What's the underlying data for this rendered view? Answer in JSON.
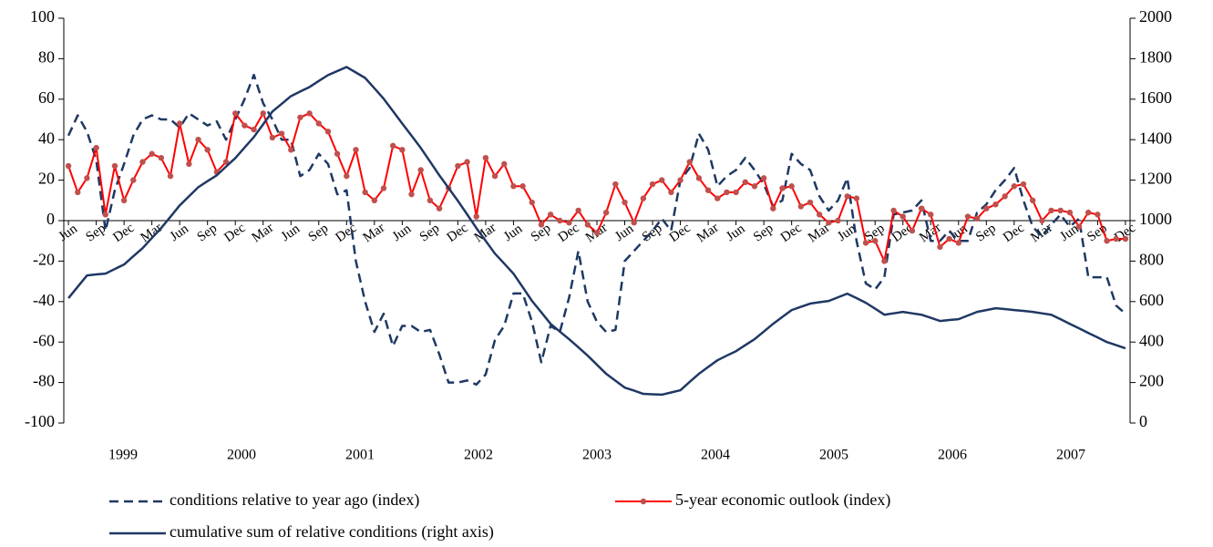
{
  "chart_data": {
    "type": "line",
    "categories": [
      "Jun",
      null,
      null,
      "Sep",
      null,
      null,
      "Dec",
      null,
      null,
      "Mar",
      null,
      null,
      "Jun",
      null,
      null,
      "Sep",
      null,
      null,
      "Dec",
      null,
      null,
      "Mar",
      null,
      null,
      "Jun",
      null,
      null,
      "Sep",
      null,
      null,
      "Dec",
      null,
      null,
      "Mar",
      null,
      null,
      "Jun",
      null,
      null,
      "Sep",
      null,
      null,
      "Dec",
      null,
      null,
      "Mar",
      null,
      null,
      "Jun",
      null,
      null,
      "Sep",
      null,
      null,
      "Dec",
      null,
      null,
      "Mar",
      null,
      null,
      "Jun",
      null,
      null,
      "Sep",
      null,
      null,
      "Dec",
      null,
      null,
      "Mar",
      null,
      null,
      "Jun",
      null,
      null,
      "Sep",
      null,
      null,
      "Dec",
      null,
      null,
      "Mar",
      null,
      null,
      "Jun",
      null,
      null,
      "Sep",
      null,
      null,
      "Dec",
      null,
      null,
      "Mar",
      null,
      null,
      "Jun",
      null,
      null,
      "Sep",
      null,
      null,
      "Dec",
      null,
      null,
      "Mar",
      null,
      null,
      "Jun",
      null,
      null,
      "Sep",
      null,
      null,
      "Dec"
    ],
    "year_labels": [
      "1999",
      "2000",
      "2001",
      "2002",
      "2003",
      "2004",
      "2005",
      "2006",
      "2007"
    ],
    "series": [
      {
        "name": "conditions relative to year ago (index)",
        "color": "#1f3864",
        "line_style": "dashed",
        "values": [
          42,
          52,
          44,
          30,
          -5,
          15,
          28,
          42,
          50,
          52,
          50,
          50,
          46,
          53,
          50,
          47,
          49,
          40,
          50,
          60,
          72,
          58,
          50,
          40,
          40,
          22,
          25,
          33,
          28,
          13,
          15,
          -20,
          -40,
          -55,
          -46,
          -62,
          -52,
          -52,
          -55,
          -54,
          -66,
          -80,
          -80,
          -79,
          -81,
          -76,
          -59,
          -52,
          -36,
          -36,
          -50,
          -70,
          -52,
          -55,
          -38,
          -15,
          -40,
          -50,
          -55,
          -54,
          -20,
          -15,
          -10,
          -5,
          1,
          -5,
          20,
          26,
          43,
          35,
          17,
          22,
          25,
          31,
          25,
          18,
          7,
          10,
          33,
          28,
          25,
          12,
          5,
          10,
          21,
          -10,
          -31,
          -34,
          -28,
          3,
          4,
          5,
          10,
          -10,
          -10,
          -5,
          -10,
          -10,
          4,
          8,
          15,
          20,
          26,
          10,
          -3,
          -8,
          -2,
          3,
          -3,
          1,
          -28,
          -28,
          -28,
          -42,
          -46
        ]
      },
      {
        "name": "5-year economic outlook (index)",
        "color": "#ff0000",
        "marker": "circle",
        "marker_color": "#c0504d",
        "values": [
          27,
          14,
          21,
          36,
          3,
          27,
          10,
          20,
          29,
          33,
          31,
          22,
          48,
          28,
          40,
          35,
          24,
          29,
          53,
          47,
          45,
          53,
          41,
          43,
          35,
          51,
          53,
          48,
          44,
          33,
          22,
          35,
          14,
          10,
          16,
          37,
          35,
          13,
          25,
          10,
          6,
          16,
          27,
          29,
          2,
          31,
          22,
          28,
          17,
          17,
          9,
          -2,
          3,
          0,
          -1,
          5,
          -2,
          -6,
          4,
          18,
          9,
          -1,
          11,
          18,
          20,
          14,
          20,
          29,
          21,
          15,
          11,
          14,
          14,
          19,
          17,
          21,
          6,
          16,
          17,
          7,
          9,
          3,
          -1,
          0,
          12,
          11,
          -11,
          -10,
          -20,
          5,
          2,
          -5,
          6,
          3,
          -13,
          -9,
          -11,
          2,
          1,
          6,
          8,
          12,
          17,
          18,
          10,
          0,
          5,
          5,
          4,
          -3,
          4,
          3,
          -10,
          -9,
          -9
        ]
      },
      {
        "name": "cumulative sum of relative conditions (right axis)",
        "color": "#1f3864",
        "axis": "y2",
        "values": [
          617,
          673,
          729,
          734,
          738,
          761,
          783,
          824,
          864,
          914,
          963,
          1019,
          1075,
          1120,
          1165,
          1195,
          1224,
          1267,
          1309,
          1361,
          1413,
          1476,
          1539,
          1577,
          1615,
          1638,
          1660,
          1690,
          1719,
          1739,
          1759,
          1732,
          1705,
          1654,
          1602,
          1541,
          1480,
          1420,
          1359,
          1292,
          1224,
          1161,
          1098,
          1031,
          963,
          900,
          837,
          788,
          738,
          671,
          603,
          547,
          490,
          452,
          414,
          374,
          333,
          288,
          243,
          209,
          175,
          160,
          144,
          142,
          140,
          151,
          162,
          203,
          243,
          277,
          310,
          333,
          355,
          385,
          414,
          452,
          490,
          524,
          558,
          574,
          590,
          597,
          603,
          621,
          639,
          617,
          594,
          565,
          535,
          542,
          549,
          542,
          535,
          520,
          504,
          509,
          513,
          531,
          549,
          558,
          567,
          563,
          558,
          554,
          549,
          542,
          535,
          513,
          490,
          468,
          445,
          423,
          400,
          385,
          369
        ]
      }
    ],
    "ylim": [
      -100,
      100
    ],
    "yticks": [
      -100,
      -80,
      -60,
      -40,
      -20,
      0,
      20,
      40,
      60,
      80,
      100
    ],
    "y2lim": [
      0,
      2000
    ],
    "y2ticks": [
      0,
      200,
      400,
      600,
      800,
      1000,
      1200,
      1400,
      1600,
      1800,
      2000
    ],
    "grid": false
  }
}
